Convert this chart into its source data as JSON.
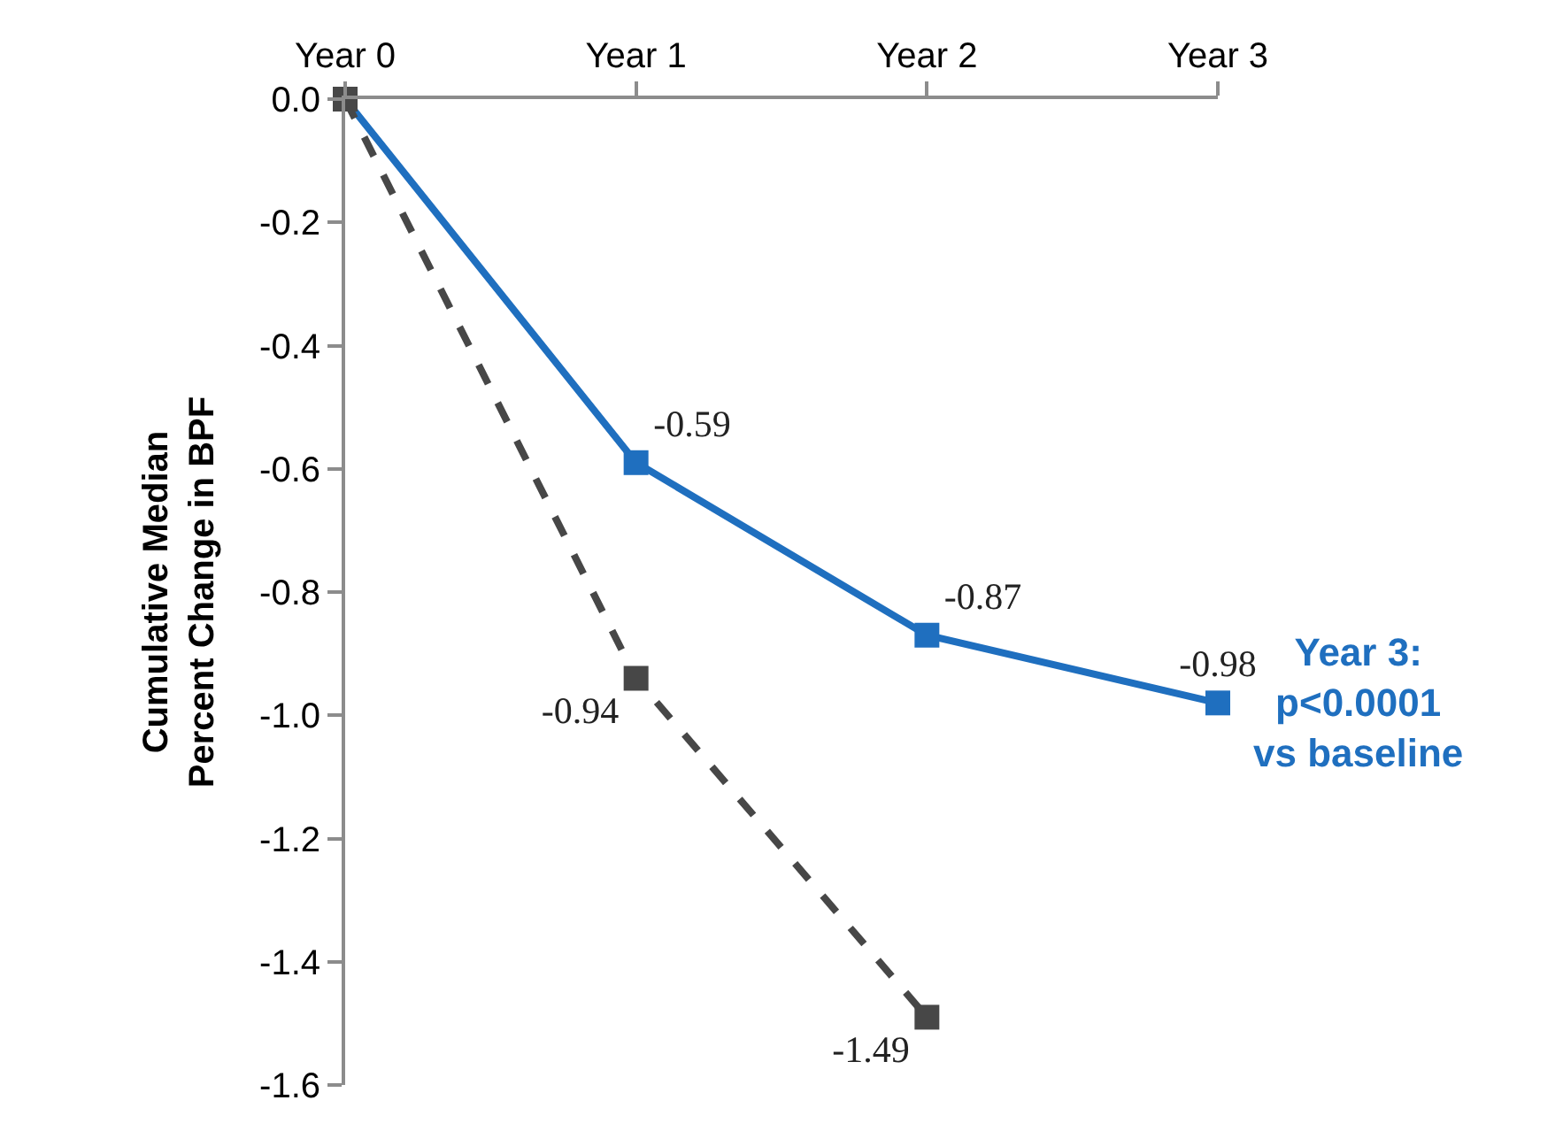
{
  "chart_data": {
    "type": "line",
    "ylabel": "Cumulative Median\nPercent Change in BPF",
    "categories": [
      "Year 0",
      "Year 1",
      "Year 2",
      "Year 3"
    ],
    "series": [
      {
        "color": "#1f6fbf",
        "values": [
          0,
          -0.59,
          -0.87,
          -0.98
        ],
        "value_labels": [
          null,
          "-0.59",
          "-0.87",
          "-0.98"
        ],
        "line_style": "solid"
      },
      {
        "color": "#474747",
        "values": [
          0,
          -0.94,
          -1.49,
          null
        ],
        "value_labels": [
          null,
          "-0.94",
          "-1.49",
          null
        ],
        "line_style": "dashed"
      }
    ],
    "ylim": [
      -1.6,
      0
    ],
    "yticks": [
      {
        "value": 0,
        "label": "0.0"
      },
      -0.2,
      -0.4,
      -0.6,
      -0.8,
      {
        "value": -1.0,
        "label": "-1.0"
      },
      -1.2,
      -1.4,
      -1.6
    ],
    "annotations": [
      {
        "text": "Year 3:\np<0.0001\nvs baseline",
        "x": "Year 3",
        "y": -0.98
      }
    ],
    "marker": "square"
  }
}
